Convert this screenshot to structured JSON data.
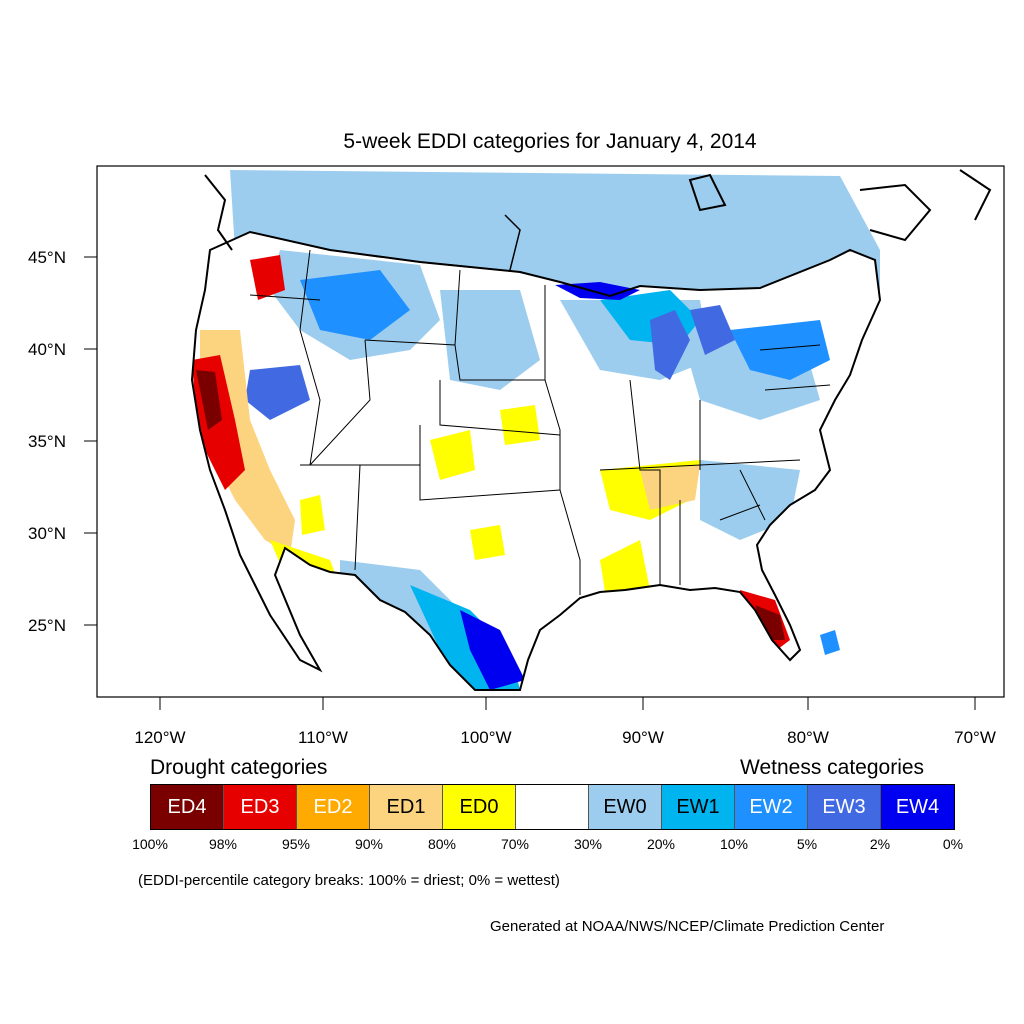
{
  "title": "5-week EDDI categories for January 4, 2014",
  "axes": {
    "latitude_labels": [
      "45°N",
      "40°N",
      "35°N",
      "30°N",
      "25°N"
    ],
    "longitude_labels": [
      "120°W",
      "110°W",
      "100°W",
      "90°W",
      "80°W",
      "70°W"
    ]
  },
  "legend": {
    "drought_heading": "Drought categories",
    "wetness_heading": "Wetness categories",
    "categories": [
      {
        "label": "ED4",
        "color": "#7a0000",
        "text_color": "#ffffff"
      },
      {
        "label": "ED3",
        "color": "#e60000",
        "text_color": "#ffffff"
      },
      {
        "label": "ED2",
        "color": "#ffaa00",
        "text_color": "#ffffff"
      },
      {
        "label": "ED1",
        "color": "#fcd37f",
        "text_color": "#000000"
      },
      {
        "label": "ED0",
        "color": "#ffff00",
        "text_color": "#000000"
      },
      {
        "label": "",
        "color": "#ffffff",
        "text_color": "#000000"
      },
      {
        "label": "EW0",
        "color": "#9ccdee",
        "text_color": "#000000"
      },
      {
        "label": "EW1",
        "color": "#00b4f0",
        "text_color": "#000000"
      },
      {
        "label": "EW2",
        "color": "#1e90ff",
        "text_color": "#ffffff"
      },
      {
        "label": "EW3",
        "color": "#4169e1",
        "text_color": "#ffffff"
      },
      {
        "label": "EW4",
        "color": "#0000f0",
        "text_color": "#ffffff"
      }
    ],
    "breaks": [
      "100%",
      "98%",
      "95%",
      "90%",
      "80%",
      "70%",
      "30%",
      "20%",
      "10%",
      "5%",
      "2%",
      "0%"
    ]
  },
  "note": "(EDDI-percentile category breaks: 100% = driest; 0% = wettest)",
  "credit": "Generated at NOAA/NWS/NCEP/Climate Prediction Center"
}
